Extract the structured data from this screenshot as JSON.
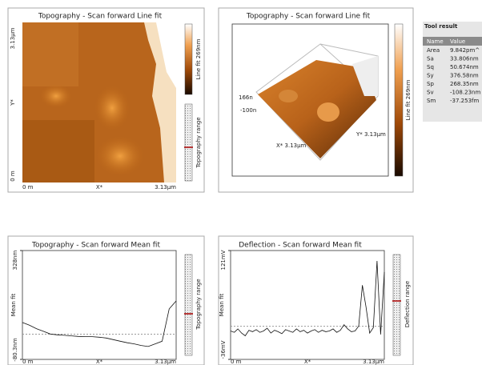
{
  "panels": [
    {
      "title": "Topography - Scan forward   Line fit",
      "y_labels": [
        "3.13µm",
        "Y*",
        "0 m"
      ],
      "x_labels": [
        "0 m",
        "X*",
        "3.13µm"
      ],
      "colorbar_label": "Line fit 269nm",
      "range_label": "Topography range"
    },
    {
      "title": "Topography - Scan forward   Line fit",
      "z_labels": [
        "166n",
        "-100n"
      ],
      "x_axis": "X* 3.13µm",
      "y_axis": "Y* 3.13µm",
      "colorbar_label": "Line fit 269nm"
    },
    {
      "title": "Topography - Scan forward   Mean fit",
      "y_label": "Mean fit",
      "ylim": [
        -80.3,
        328
      ],
      "yticks": [
        {
          "value": 328,
          "label": "328nm"
        },
        {
          "value": -80.3,
          "label": "-80.3nm"
        }
      ],
      "x_labels": [
        "0 m",
        "X*",
        "3.13µm"
      ],
      "range_label": "Topography range",
      "profile": [
        58,
        48,
        35,
        25,
        15,
        12,
        10,
        8,
        6,
        5,
        5,
        3,
        0,
        -6,
        -12,
        -18,
        -22,
        -28,
        -32,
        -22,
        -12,
        109,
        139
      ]
    },
    {
      "title": "Deflection - Scan forward   Mean fit",
      "y_label": "Mean fit",
      "ylim": [
        -36,
        121
      ],
      "yticks": [
        {
          "value": 121,
          "label": "121mV"
        },
        {
          "value": -36,
          "label": "-36mV"
        }
      ],
      "x_labels": [
        "0 m",
        "X*",
        "3.13µm"
      ],
      "range_label": "Deflection range",
      "profile": [
        5,
        3,
        8,
        2,
        -2,
        6,
        4,
        7,
        3,
        5,
        9,
        2,
        6,
        4,
        1,
        7,
        5,
        3,
        8,
        4,
        6,
        2,
        5,
        7,
        3,
        6,
        4,
        5,
        8,
        3,
        6,
        14,
        8,
        4,
        5,
        12,
        71,
        40,
        2,
        10,
        106,
        0,
        90
      ]
    }
  ],
  "tool_result": {
    "title": "Tool result",
    "columns": [
      "Name",
      "Value"
    ],
    "rows": [
      [
        "Area",
        "9.842pm^"
      ],
      [
        "Sa",
        "33.806nm"
      ],
      [
        "Sq",
        "50.674nm"
      ],
      [
        "Sy",
        "376.58nm"
      ],
      [
        "Sp",
        "268.35nm"
      ],
      [
        "Sv",
        "-108.23nm"
      ],
      [
        "Sm",
        "-37.253fm"
      ]
    ]
  }
}
